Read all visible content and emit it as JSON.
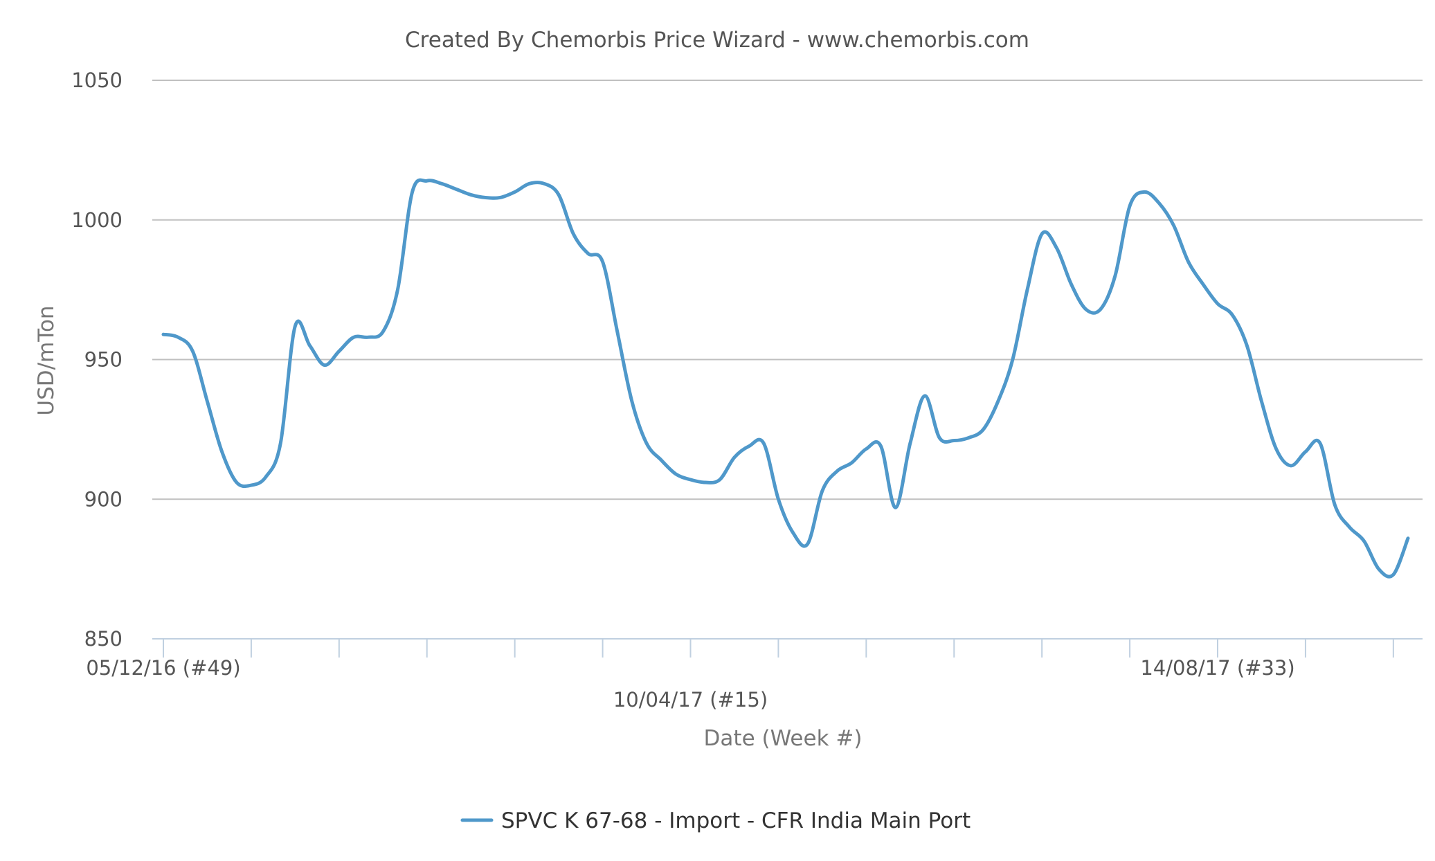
{
  "title": "Created By Chemorbis Price Wizard - www.chemorbis.com",
  "colors": {
    "series": "#4f98ca",
    "grid": "#c0c0c0",
    "axis": "#c0d0e0",
    "text": "#555555",
    "axis_title": "#777777",
    "legend_text": "#333333"
  },
  "legend": {
    "label": "SPVC K 67-68 - Import - CFR India Main Port",
    "icon": "line-swatch-icon"
  },
  "chart_data": {
    "type": "line",
    "title": "Created By Chemorbis Price Wizard - www.chemorbis.com",
    "xlabel": "Date (Week #)",
    "ylabel": "USD/mTon",
    "ylim": [
      850,
      1050
    ],
    "yticks": [
      850,
      900,
      950,
      1000,
      1050
    ],
    "grid": true,
    "legend_position": "bottom-center",
    "x_tick_labels": [
      {
        "index": 0,
        "label": "05/12/16 (#49)",
        "row": 0
      },
      {
        "index": 36,
        "label": "10/04/17 (#15)",
        "row": 1
      },
      {
        "index": 72,
        "label": "14/08/17 (#33)",
        "row": 0
      }
    ],
    "x_start": "05/12/16 (#49)",
    "x_tick_step": 6,
    "series": [
      {
        "name": "SPVC K 67-68 - Import - CFR India Main Port",
        "values": [
          959,
          958,
          953,
          935,
          917,
          906,
          905,
          908,
          920,
          962,
          955,
          948,
          953,
          958,
          958,
          960,
          975,
          1010,
          1014,
          1013,
          1011,
          1009,
          1008,
          1008,
          1010,
          1013,
          1013,
          1009,
          995,
          988,
          985,
          960,
          935,
          920,
          914,
          909,
          907,
          906,
          907,
          915,
          919,
          920,
          900,
          888,
          884,
          903,
          910,
          913,
          918,
          919,
          897,
          920,
          937,
          922,
          921,
          922,
          925,
          935,
          950,
          975,
          995,
          990,
          977,
          968,
          968,
          980,
          1005,
          1010,
          1006,
          998,
          985,
          977,
          970,
          966,
          955,
          935,
          918,
          912,
          917,
          920,
          898,
          890,
          885,
          875,
          873,
          886
        ]
      }
    ]
  }
}
